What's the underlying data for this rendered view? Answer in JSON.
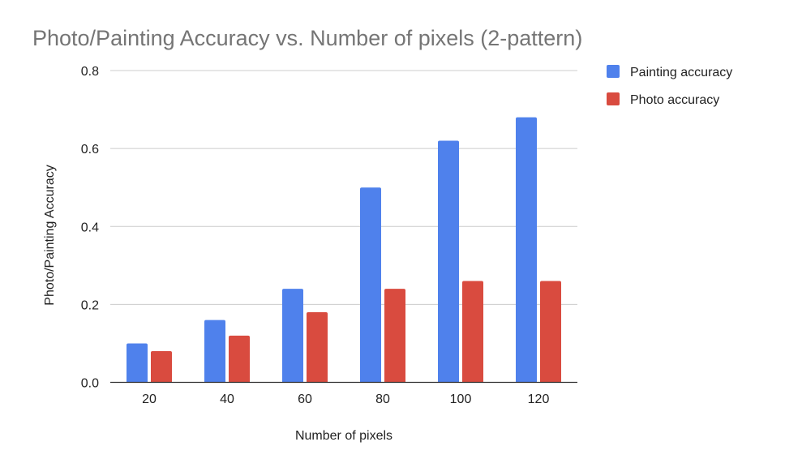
{
  "chart_data": {
    "type": "bar",
    "title": "Photo/Painting Accuracy vs. Number of pixels (2-pattern)",
    "xlabel": "Number of pixels",
    "ylabel": "Photo/Painting Accuracy",
    "categories": [
      "20",
      "40",
      "60",
      "80",
      "100",
      "120"
    ],
    "series": [
      {
        "name": "Painting accuracy",
        "values": [
          0.1,
          0.16,
          0.24,
          0.5,
          0.62,
          0.68
        ],
        "color": "#4F81EC"
      },
      {
        "name": "Photo accuracy",
        "values": [
          0.08,
          0.12,
          0.18,
          0.24,
          0.26,
          0.26
        ],
        "color": "#D94B3F"
      }
    ],
    "ylim": [
      0,
      0.8
    ],
    "yticks": [
      "0.0",
      "0.2",
      "0.4",
      "0.6",
      "0.8"
    ],
    "grid": true,
    "legend_position": "top-right"
  }
}
